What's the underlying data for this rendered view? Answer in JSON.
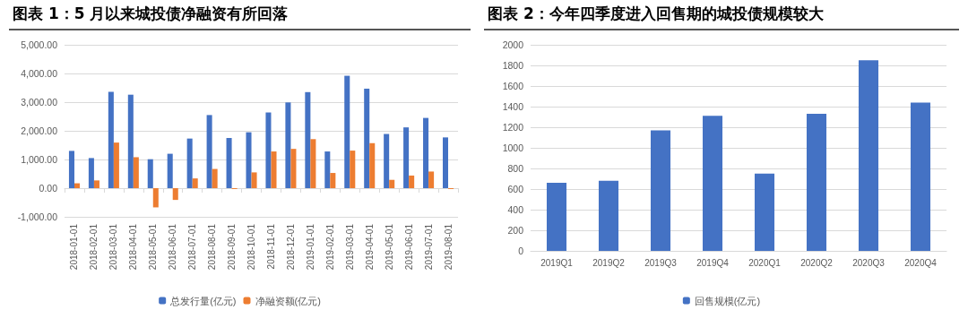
{
  "chart_data": [
    {
      "type": "bar",
      "title": "图表 1：5 月以来城投债净融资有所回落",
      "categories": [
        "2018-01-01",
        "2018-02-01",
        "2018-03-01",
        "2018-04-01",
        "2018-05-01",
        "2018-06-01",
        "2018-07-01",
        "2018-08-01",
        "2018-09-01",
        "2018-10-01",
        "2018-11-01",
        "2018-12-01",
        "2019-01-01",
        "2019-02-01",
        "2019-03-01",
        "2019-04-01",
        "2019-05-01",
        "2019-06-01",
        "2019-07-01",
        "2019-08-01"
      ],
      "series": [
        {
          "name": "总发行量(亿元)",
          "color": "#4472c4",
          "values": [
            1300,
            1050,
            3360,
            3260,
            1010,
            1200,
            1730,
            2550,
            1750,
            1950,
            2640,
            2990,
            3350,
            1280,
            3920,
            3470,
            1890,
            2120,
            2450,
            1770
          ]
        },
        {
          "name": "净融资额(亿元)",
          "color": "#ed7d31",
          "values": [
            170,
            270,
            1590,
            1080,
            -670,
            -410,
            340,
            670,
            -30,
            550,
            1280,
            1370,
            1710,
            530,
            1310,
            1570,
            290,
            440,
            580,
            -30
          ]
        }
      ],
      "ylim": [
        -1000,
        5000
      ],
      "yticks": [
        {
          "value": -1000,
          "label": "-1,000.00"
        },
        {
          "value": 0,
          "label": "0.00"
        },
        {
          "value": 1000,
          "label": "1,000.00"
        },
        {
          "value": 2000,
          "label": "2,000.00"
        },
        {
          "value": 3000,
          "label": "3,000.00"
        },
        {
          "value": 4000,
          "label": "4,000.00"
        },
        {
          "value": 5000,
          "label": "5,000.00"
        }
      ],
      "grid": "y",
      "legend": "bottom"
    },
    {
      "type": "bar",
      "title": "图表 2：今年四季度进入回售期的城投债规模较大",
      "categories": [
        "2019Q1",
        "2019Q2",
        "2019Q3",
        "2019Q4",
        "2020Q1",
        "2020Q2",
        "2020Q3",
        "2020Q4"
      ],
      "series": [
        {
          "name": "回售规模(亿元)",
          "color": "#4472c4",
          "values": [
            660,
            680,
            1170,
            1310,
            750,
            1330,
            1850,
            1440
          ]
        }
      ],
      "ylim": [
        0,
        2000
      ],
      "yticks": [
        0,
        200,
        400,
        600,
        800,
        1000,
        1200,
        1400,
        1600,
        1800,
        2000
      ],
      "grid": "y",
      "legend": "bottom"
    }
  ]
}
